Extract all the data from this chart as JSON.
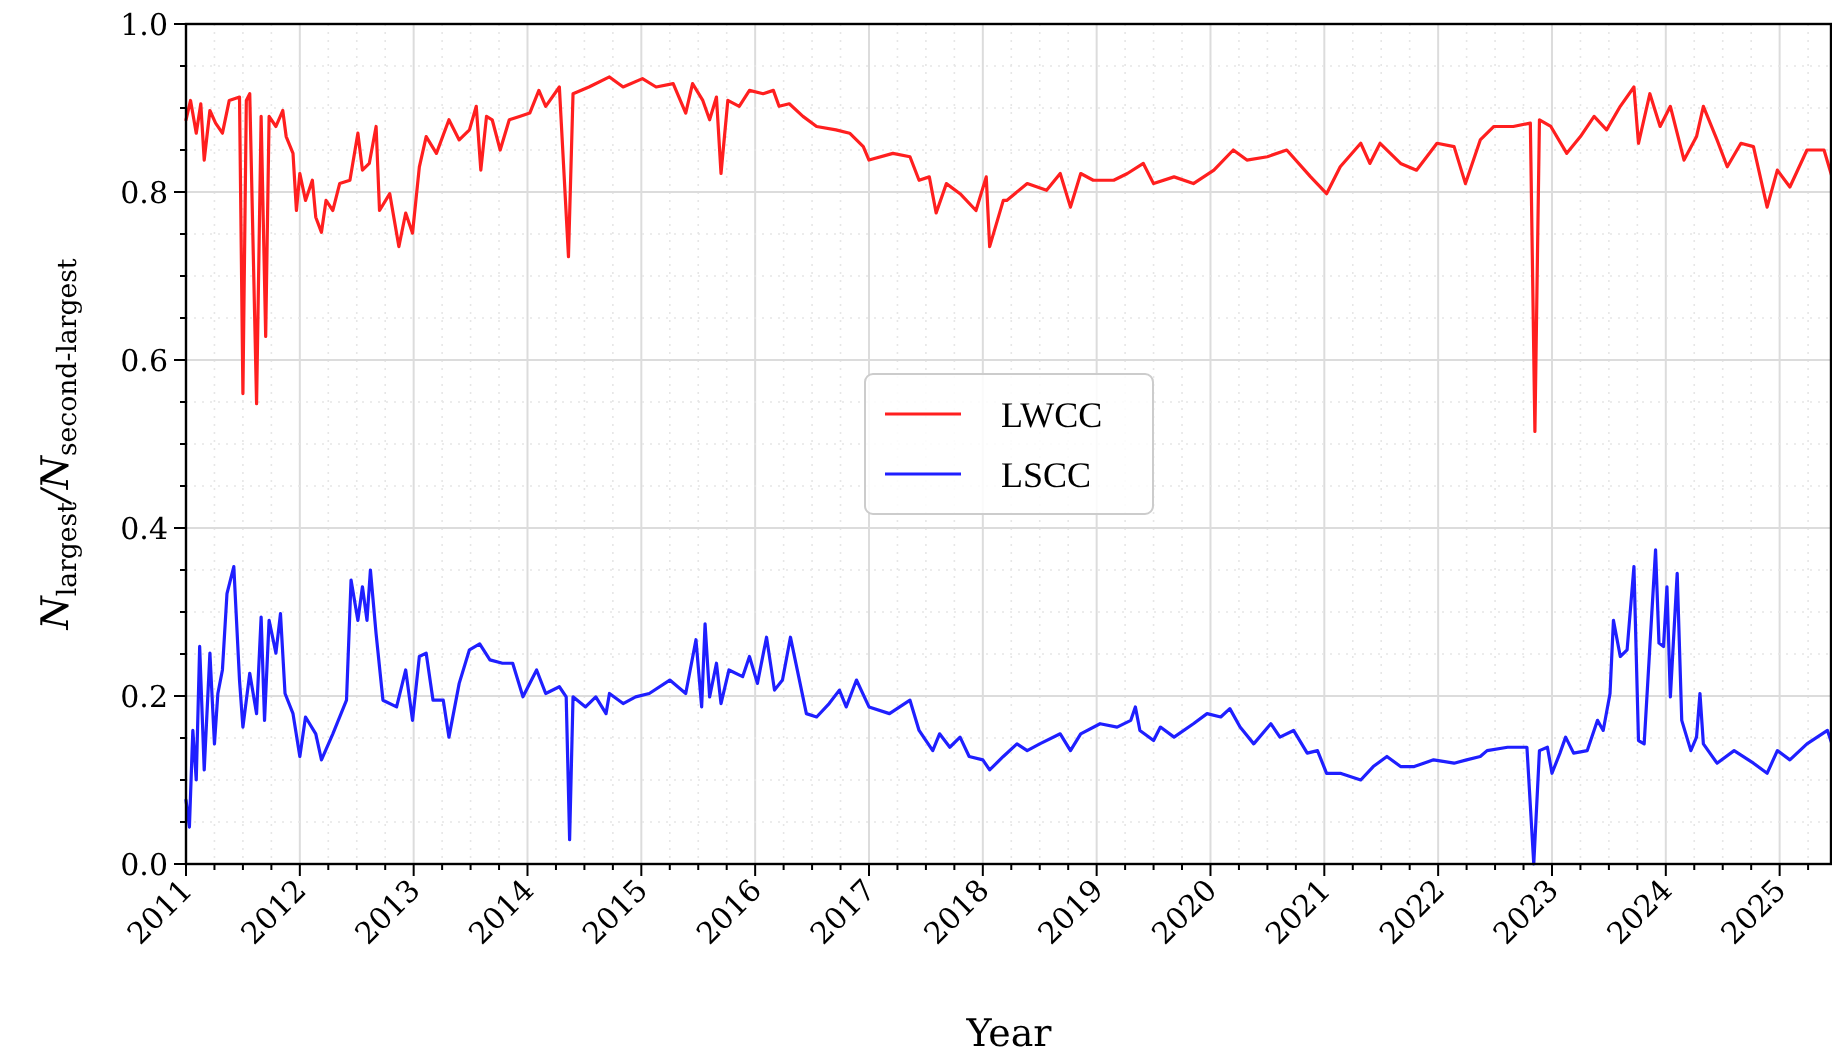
{
  "chart_data": {
    "type": "line",
    "xlabel": "Year",
    "ylabel": "N$_{largest}$/N$_{second-largest}$",
    "xlim": [
      2011,
      2025.46
    ],
    "ylim": [
      0,
      1
    ],
    "xticks": [
      2011,
      {
        "value": 2011.25,
        "label": null
      },
      {
        "value": 2011.5,
        "label": null
      },
      {
        "value": 2011.75,
        "label": null
      },
      2012,
      {
        "value": 2012.25,
        "label": null
      },
      {
        "value": 2012.5,
        "label": null
      },
      {
        "value": 2012.75,
        "label": null
      },
      2013,
      {
        "value": 2013.25,
        "label": null
      },
      {
        "value": 2013.5,
        "label": null
      },
      {
        "value": 2013.75,
        "label": null
      },
      2014,
      {
        "value": 2014.25,
        "label": null
      },
      {
        "value": 2014.5,
        "label": null
      },
      {
        "value": 2014.75,
        "label": null
      },
      2015,
      {
        "value": 2015.25,
        "label": null
      },
      {
        "value": 2015.5,
        "label": null
      },
      {
        "value": 2015.75,
        "label": null
      },
      2016,
      {
        "value": 2016.25,
        "label": null
      },
      {
        "value": 2016.5,
        "label": null
      },
      {
        "value": 2016.75,
        "label": null
      },
      2017,
      {
        "value": 2017.25,
        "label": null
      },
      {
        "value": 2017.5,
        "label": null
      },
      {
        "value": 2017.75,
        "label": null
      },
      2018,
      {
        "value": 2018.25,
        "label": null
      },
      {
        "value": 2018.5,
        "label": null
      },
      {
        "value": 2018.75,
        "label": null
      },
      2019,
      {
        "value": 2019.25,
        "label": null
      },
      {
        "value": 2019.5,
        "label": null
      },
      {
        "value": 2019.75,
        "label": null
      },
      2020,
      {
        "value": 2020.25,
        "label": null
      },
      {
        "value": 2020.5,
        "label": null
      },
      {
        "value": 2020.75,
        "label": null
      },
      2021,
      {
        "value": 2021.25,
        "label": null
      },
      {
        "value": 2021.5,
        "label": null
      },
      {
        "value": 2021.75,
        "label": null
      },
      2022,
      {
        "value": 2022.25,
        "label": null
      },
      {
        "value": 2022.5,
        "label": null
      },
      {
        "value": 2022.75,
        "label": null
      },
      2023,
      {
        "value": 2023.25,
        "label": null
      },
      {
        "value": 2023.5,
        "label": null
      },
      {
        "value": 2023.75,
        "label": null
      },
      2024,
      {
        "value": 2024.25,
        "label": null
      },
      {
        "value": 2024.5,
        "label": null
      },
      {
        "value": 2024.75,
        "label": null
      },
      2025,
      {
        "value": 2025.25,
        "label": null
      }
    ],
    "yticks": [
      {
        "value": 0,
        "label": "0.0"
      },
      {
        "value": 0.05,
        "label": null
      },
      {
        "value": 0.1,
        "label": null
      },
      {
        "value": 0.15,
        "label": null
      },
      {
        "value": 0.2,
        "label": "0.2"
      },
      {
        "value": 0.25,
        "label": null
      },
      {
        "value": 0.3,
        "label": null
      },
      {
        "value": 0.35,
        "label": null
      },
      {
        "value": 0.4,
        "label": "0.4"
      },
      {
        "value": 0.45,
        "label": null
      },
      {
        "value": 0.5,
        "label": null
      },
      {
        "value": 0.55,
        "label": null
      },
      {
        "value": 0.6,
        "label": "0.6"
      },
      {
        "value": 0.65,
        "label": null
      },
      {
        "value": 0.7,
        "label": null
      },
      {
        "value": 0.75,
        "label": null
      },
      {
        "value": 0.8,
        "label": "0.8"
      },
      {
        "value": 0.85,
        "label": null
      },
      {
        "value": 0.9,
        "label": null
      },
      {
        "value": 0.95,
        "label": null
      },
      {
        "value": 1,
        "label": "1.0"
      }
    ],
    "grid": true,
    "legend": "center",
    "marker": "none",
    "line_style": "solid",
    "series": [
      {
        "name": "LWCC",
        "color": "#ff1f1f",
        "x": [
          2011.0,
          2011.04,
          2011.09,
          2011.13,
          2011.16,
          2011.21,
          2011.26,
          2011.32,
          2011.38,
          2011.47,
          2011.5,
          2011.53,
          2011.56,
          2011.62,
          2011.66,
          2011.7,
          2011.73,
          2011.79,
          2011.85,
          2011.88,
          2011.94,
          2011.97,
          2012.0,
          2012.05,
          2012.11,
          2012.14,
          2012.19,
          2012.23,
          2012.29,
          2012.35,
          2012.44,
          2012.51,
          2012.55,
          2012.61,
          2012.67,
          2012.7,
          2012.79,
          2012.87,
          2012.93,
          2012.99,
          2013.05,
          2013.11,
          2013.2,
          2013.31,
          2013.4,
          2013.49,
          2013.55,
          2013.59,
          2013.64,
          2013.69,
          2013.76,
          2013.84,
          2013.93,
          2014.02,
          2014.1,
          2014.16,
          2014.28,
          2014.36,
          2014.4,
          2014.54,
          2014.72,
          2014.84,
          2015.01,
          2015.13,
          2015.28,
          2015.39,
          2015.45,
          2015.54,
          2015.6,
          2015.66,
          2015.7,
          2015.76,
          2015.86,
          2015.95,
          2016.07,
          2016.16,
          2016.21,
          2016.3,
          2016.42,
          2016.54,
          2016.71,
          2016.83,
          2016.95,
          2017.0,
          2017.21,
          2017.36,
          2017.44,
          2017.53,
          2017.59,
          2017.68,
          2017.8,
          2017.94,
          2018.03,
          2018.06,
          2018.18,
          2018.21,
          2018.39,
          2018.56,
          2018.68,
          2018.77,
          2018.86,
          2018.97,
          2019.15,
          2019.27,
          2019.41,
          2019.5,
          2019.68,
          2019.85,
          2020.03,
          2020.2,
          2020.32,
          2020.5,
          2020.67,
          2020.88,
          2021.02,
          2021.14,
          2021.32,
          2021.4,
          2021.49,
          2021.67,
          2021.81,
          2021.99,
          2022.14,
          2022.24,
          2022.37,
          2022.49,
          2022.66,
          2022.81,
          2022.85,
          2022.89,
          2022.99,
          2023.13,
          2023.25,
          2023.37,
          2023.48,
          2023.6,
          2023.72,
          2023.76,
          2023.86,
          2023.95,
          2024.04,
          2024.16,
          2024.27,
          2024.33,
          2024.45,
          2024.54,
          2024.66,
          2024.77,
          2024.89,
          2024.98,
          2025.09,
          2025.24,
          2025.39,
          2025.46
        ],
        "values": [
          0.886,
          0.909,
          0.87,
          0.905,
          0.838,
          0.897,
          0.882,
          0.87,
          0.909,
          0.913,
          0.56,
          0.909,
          0.917,
          0.548,
          0.89,
          0.628,
          0.89,
          0.878,
          0.897,
          0.866,
          0.846,
          0.778,
          0.822,
          0.79,
          0.814,
          0.77,
          0.752,
          0.79,
          0.778,
          0.81,
          0.814,
          0.87,
          0.826,
          0.834,
          0.878,
          0.778,
          0.798,
          0.735,
          0.775,
          0.751,
          0.83,
          0.866,
          0.846,
          0.886,
          0.862,
          0.874,
          0.902,
          0.826,
          0.89,
          0.886,
          0.85,
          0.886,
          0.89,
          0.894,
          0.921,
          0.902,
          0.925,
          0.723,
          0.917,
          0.925,
          0.937,
          0.925,
          0.935,
          0.925,
          0.929,
          0.894,
          0.929,
          0.909,
          0.886,
          0.913,
          0.822,
          0.909,
          0.902,
          0.921,
          0.917,
          0.921,
          0.902,
          0.905,
          0.89,
          0.878,
          0.874,
          0.87,
          0.854,
          0.838,
          0.846,
          0.842,
          0.814,
          0.818,
          0.775,
          0.81,
          0.798,
          0.778,
          0.818,
          0.735,
          0.79,
          0.79,
          0.81,
          0.802,
          0.822,
          0.782,
          0.822,
          0.814,
          0.814,
          0.822,
          0.834,
          0.81,
          0.818,
          0.81,
          0.826,
          0.85,
          0.838,
          0.842,
          0.85,
          0.818,
          0.798,
          0.83,
          0.858,
          0.834,
          0.858,
          0.834,
          0.826,
          0.858,
          0.854,
          0.81,
          0.862,
          0.878,
          0.878,
          0.882,
          0.515,
          0.886,
          0.878,
          0.846,
          0.866,
          0.89,
          0.874,
          0.902,
          0.925,
          0.858,
          0.917,
          0.878,
          0.902,
          0.838,
          0.866,
          0.902,
          0.862,
          0.83,
          0.858,
          0.854,
          0.782,
          0.826,
          0.806,
          0.85,
          0.85,
          0.818
        ]
      },
      {
        "name": "LSCC",
        "color": "#1f1fff",
        "x": [
          2011.0,
          2011.03,
          2011.06,
          2011.09,
          2011.12,
          2011.16,
          2011.21,
          2011.25,
          2011.28,
          2011.32,
          2011.36,
          2011.42,
          2011.47,
          2011.5,
          2011.56,
          2011.62,
          2011.66,
          2011.69,
          2011.73,
          2011.79,
          2011.83,
          2011.87,
          2011.94,
          2012.0,
          2012.05,
          2012.14,
          2012.19,
          2012.29,
          2012.41,
          2012.45,
          2012.51,
          2012.55,
          2012.59,
          2012.62,
          2012.67,
          2012.73,
          2012.85,
          2012.93,
          2012.99,
          2013.05,
          2013.11,
          2013.17,
          2013.26,
          2013.31,
          2013.4,
          2013.49,
          2013.58,
          2013.67,
          2013.78,
          2013.87,
          2013.96,
          2014.08,
          2014.16,
          2014.28,
          2014.34,
          2014.37,
          2014.4,
          2014.51,
          2014.6,
          2014.69,
          2014.72,
          2014.84,
          2014.95,
          2015.07,
          2015.25,
          2015.39,
          2015.48,
          2015.53,
          2015.56,
          2015.6,
          2015.66,
          2015.7,
          2015.77,
          2015.89,
          2015.95,
          2016.02,
          2016.1,
          2016.17,
          2016.24,
          2016.31,
          2016.45,
          2016.54,
          2016.65,
          2016.74,
          2016.8,
          2016.89,
          2017.0,
          2017.18,
          2017.36,
          2017.44,
          2017.56,
          2017.62,
          2017.71,
          2017.8,
          2017.88,
          2018.0,
          2018.06,
          2018.18,
          2018.3,
          2018.39,
          2018.5,
          2018.68,
          2018.77,
          2018.86,
          2019.03,
          2019.18,
          2019.3,
          2019.34,
          2019.38,
          2019.5,
          2019.56,
          2019.68,
          2019.85,
          2019.97,
          2020.09,
          2020.17,
          2020.26,
          2020.38,
          2020.53,
          2020.61,
          2020.73,
          2020.85,
          2020.94,
          2021.02,
          2021.14,
          2021.32,
          2021.43,
          2021.55,
          2021.67,
          2021.79,
          2021.96,
          2022.14,
          2022.25,
          2022.37,
          2022.43,
          2022.61,
          2022.78,
          2022.84,
          2022.89,
          2022.96,
          2023.0,
          2023.07,
          2023.12,
          2023.19,
          2023.31,
          2023.4,
          2023.45,
          2023.51,
          2023.54,
          2023.6,
          2023.66,
          2023.72,
          2023.76,
          2023.81,
          2023.86,
          2023.91,
          2023.94,
          2023.98,
          2024.01,
          2024.04,
          2024.1,
          2024.14,
          2024.22,
          2024.27,
          2024.3,
          2024.33,
          2024.45,
          2024.6,
          2024.77,
          2024.89,
          2024.98,
          2025.09,
          2025.24,
          2025.42,
          2025.46
        ],
        "values": [
          0.076,
          0.044,
          0.159,
          0.1,
          0.259,
          0.112,
          0.251,
          0.143,
          0.203,
          0.231,
          0.322,
          0.354,
          0.219,
          0.163,
          0.227,
          0.179,
          0.294,
          0.171,
          0.29,
          0.251,
          0.298,
          0.203,
          0.179,
          0.128,
          0.175,
          0.155,
          0.124,
          0.155,
          0.195,
          0.338,
          0.29,
          0.33,
          0.29,
          0.35,
          0.274,
          0.195,
          0.187,
          0.231,
          0.171,
          0.247,
          0.251,
          0.195,
          0.195,
          0.151,
          0.215,
          0.255,
          0.262,
          0.243,
          0.239,
          0.239,
          0.199,
          0.231,
          0.203,
          0.211,
          0.199,
          0.029,
          0.199,
          0.187,
          0.199,
          0.179,
          0.203,
          0.191,
          0.199,
          0.203,
          0.219,
          0.203,
          0.267,
          0.187,
          0.286,
          0.199,
          0.239,
          0.191,
          0.231,
          0.223,
          0.247,
          0.215,
          0.27,
          0.207,
          0.219,
          0.27,
          0.179,
          0.175,
          0.191,
          0.207,
          0.187,
          0.219,
          0.187,
          0.179,
          0.195,
          0.159,
          0.135,
          0.155,
          0.139,
          0.151,
          0.128,
          0.124,
          0.112,
          0.128,
          0.143,
          0.135,
          0.143,
          0.155,
          0.135,
          0.155,
          0.167,
          0.163,
          0.171,
          0.187,
          0.159,
          0.147,
          0.163,
          0.151,
          0.167,
          0.179,
          0.175,
          0.185,
          0.163,
          0.143,
          0.167,
          0.151,
          0.159,
          0.132,
          0.135,
          0.108,
          0.108,
          0.1,
          0.116,
          0.128,
          0.116,
          0.116,
          0.124,
          0.12,
          0.124,
          0.128,
          0.135,
          0.139,
          0.139,
          0.0,
          0.135,
          0.139,
          0.108,
          0.132,
          0.151,
          0.132,
          0.135,
          0.171,
          0.159,
          0.203,
          0.29,
          0.247,
          0.255,
          0.354,
          0.147,
          0.143,
          0.259,
          0.374,
          0.263,
          0.259,
          0.33,
          0.199,
          0.346,
          0.171,
          0.135,
          0.151,
          0.203,
          0.143,
          0.12,
          0.135,
          0.12,
          0.108,
          0.135,
          0.124,
          0.143,
          0.159,
          0.143
        ]
      }
    ]
  }
}
